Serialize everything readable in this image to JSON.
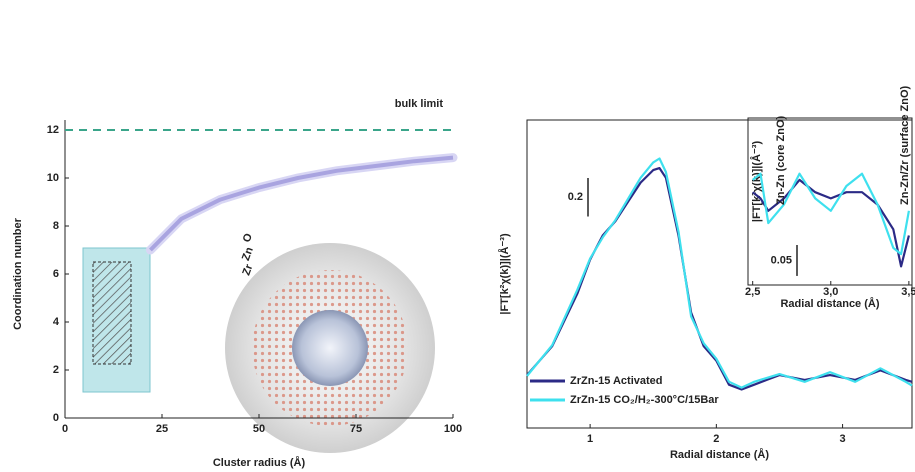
{
  "chart_data": [
    {
      "type": "line",
      "xlabel": "Cluster radius (Å)",
      "ylabel": "Coordination number",
      "x": [
        22,
        30,
        40,
        50,
        60,
        70,
        80,
        90,
        100
      ],
      "series": [
        {
          "color": "#a9a4e0",
          "values": [
            7,
            8.3,
            9.1,
            9.6,
            10,
            10.3,
            10.5,
            10.7,
            10.85
          ]
        }
      ],
      "xlim": [
        0,
        100
      ],
      "ylim": [
        0,
        12
      ],
      "xticks": [
        0,
        25,
        50,
        75,
        100
      ],
      "yticks": [
        0,
        2,
        4,
        6,
        8,
        10,
        12
      ],
      "reference_line": {
        "label": "bulk limit",
        "value": 12,
        "color": "#3aa58a"
      },
      "illustration_labels": [
        {
          "text": "Zr",
          "color": "#8a8a8a"
        },
        {
          "text": "Zn",
          "color": "#3c4fb0"
        },
        {
          "text": "O",
          "color": "#d23a2a"
        }
      ],
      "grid": false,
      "frame": false
    },
    {
      "type": "line",
      "xlabel": "Radial distance (Å)",
      "ylabel": "|FT[k²χ(k)]|(Å⁻³)",
      "x": [
        0.5,
        0.7,
        0.9,
        1.0,
        1.1,
        1.2,
        1.3,
        1.4,
        1.5,
        1.55,
        1.6,
        1.7,
        1.8,
        1.9,
        2.0,
        2.1,
        2.2,
        2.3,
        2.4,
        2.5,
        2.7,
        2.9,
        3.1,
        3.3,
        3.5,
        3.55
      ],
      "series": [
        {
          "name": "ZrZn-15 Activated",
          "color": "#2b2a86",
          "values": [
            0.275,
            0.425,
            0.7,
            0.875,
            1.0,
            1.075,
            1.175,
            1.275,
            1.34,
            1.35,
            1.3,
            1.0,
            0.6,
            0.425,
            0.35,
            0.225,
            0.2,
            0.225,
            0.25,
            0.275,
            0.25,
            0.275,
            0.25,
            0.3,
            0.25,
            0.24
          ]
        },
        {
          "name": "ZrZn-15 CO₂/H₂-300°C/15Bar",
          "color": "#3ee0ee",
          "values": [
            0.27,
            0.43,
            0.72,
            0.88,
            0.99,
            1.08,
            1.19,
            1.3,
            1.38,
            1.4,
            1.33,
            1.02,
            0.58,
            0.44,
            0.36,
            0.24,
            0.21,
            0.24,
            0.26,
            0.28,
            0.24,
            0.29,
            0.24,
            0.31,
            0.24,
            0.22
          ]
        }
      ],
      "xlim": [
        0.5,
        3.55
      ],
      "ylim": [
        0,
        1.6
      ],
      "xticks": [
        1,
        2,
        3
      ],
      "scale_bar": {
        "label": "0.2",
        "value": 0.2
      },
      "grid": false,
      "frame": true
    },
    {
      "type": "line",
      "xlabel": "Radial distance (Å)",
      "ylabel": "|FT[k²χ(k)]|(Å⁻³)",
      "x": [
        2.5,
        2.55,
        2.6,
        2.7,
        2.8,
        2.9,
        3.0,
        3.1,
        3.2,
        3.3,
        3.4,
        3.45,
        3.5
      ],
      "series": [
        {
          "color": "#2b2a86",
          "values": [
            0.15,
            0.14,
            0.12,
            0.14,
            0.17,
            0.15,
            0.14,
            0.15,
            0.15,
            0.13,
            0.09,
            0.03,
            0.08
          ]
        },
        {
          "color": "#3ee0ee",
          "values": [
            0.17,
            0.18,
            0.1,
            0.13,
            0.18,
            0.14,
            0.12,
            0.16,
            0.18,
            0.13,
            0.06,
            0.05,
            0.12
          ]
        }
      ],
      "xlim": [
        2.47,
        3.52
      ],
      "ylim": [
        0,
        0.27
      ],
      "xticks": [
        {
          "value": 2.5,
          "label": "2,5"
        },
        {
          "value": 3,
          "label": "3,0"
        },
        {
          "value": 3.5,
          "label": "3,5"
        }
      ],
      "scale_bar": {
        "label": "0.05",
        "value": 0.05
      },
      "annotations": [
        "Zn-Zn (core ZnO)",
        "Zn-Zn/Zr (surface ZnO)"
      ],
      "grid": false,
      "frame": true
    }
  ]
}
